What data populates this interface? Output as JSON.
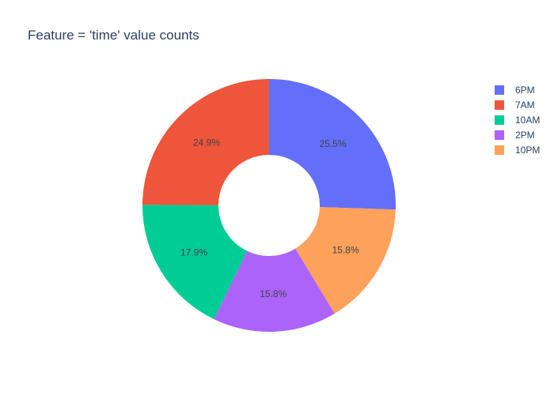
{
  "chart_data": {
    "type": "pie",
    "title": "Feature = 'time' value counts",
    "hole": true,
    "slices": [
      {
        "label": "6PM",
        "value": 25.5,
        "color": "#636efa"
      },
      {
        "label": "10PM",
        "value": 15.8,
        "color": "#fea15a"
      },
      {
        "label": "2PM",
        "value": 15.8,
        "color": "#ab63fa"
      },
      {
        "label": "10AM",
        "value": 17.9,
        "color": "#00cc96"
      },
      {
        "label": "7AM",
        "value": 24.9,
        "color": "#ef553b"
      }
    ],
    "legend": {
      "placement": "top-right",
      "entries": [
        {
          "label": "6PM",
          "color": "#636efa"
        },
        {
          "label": "7AM",
          "color": "#ef553b"
        },
        {
          "label": "10AM",
          "color": "#00cc96"
        },
        {
          "label": "2PM",
          "color": "#ab63fa"
        },
        {
          "label": "10PM",
          "color": "#fea15a"
        }
      ]
    }
  }
}
